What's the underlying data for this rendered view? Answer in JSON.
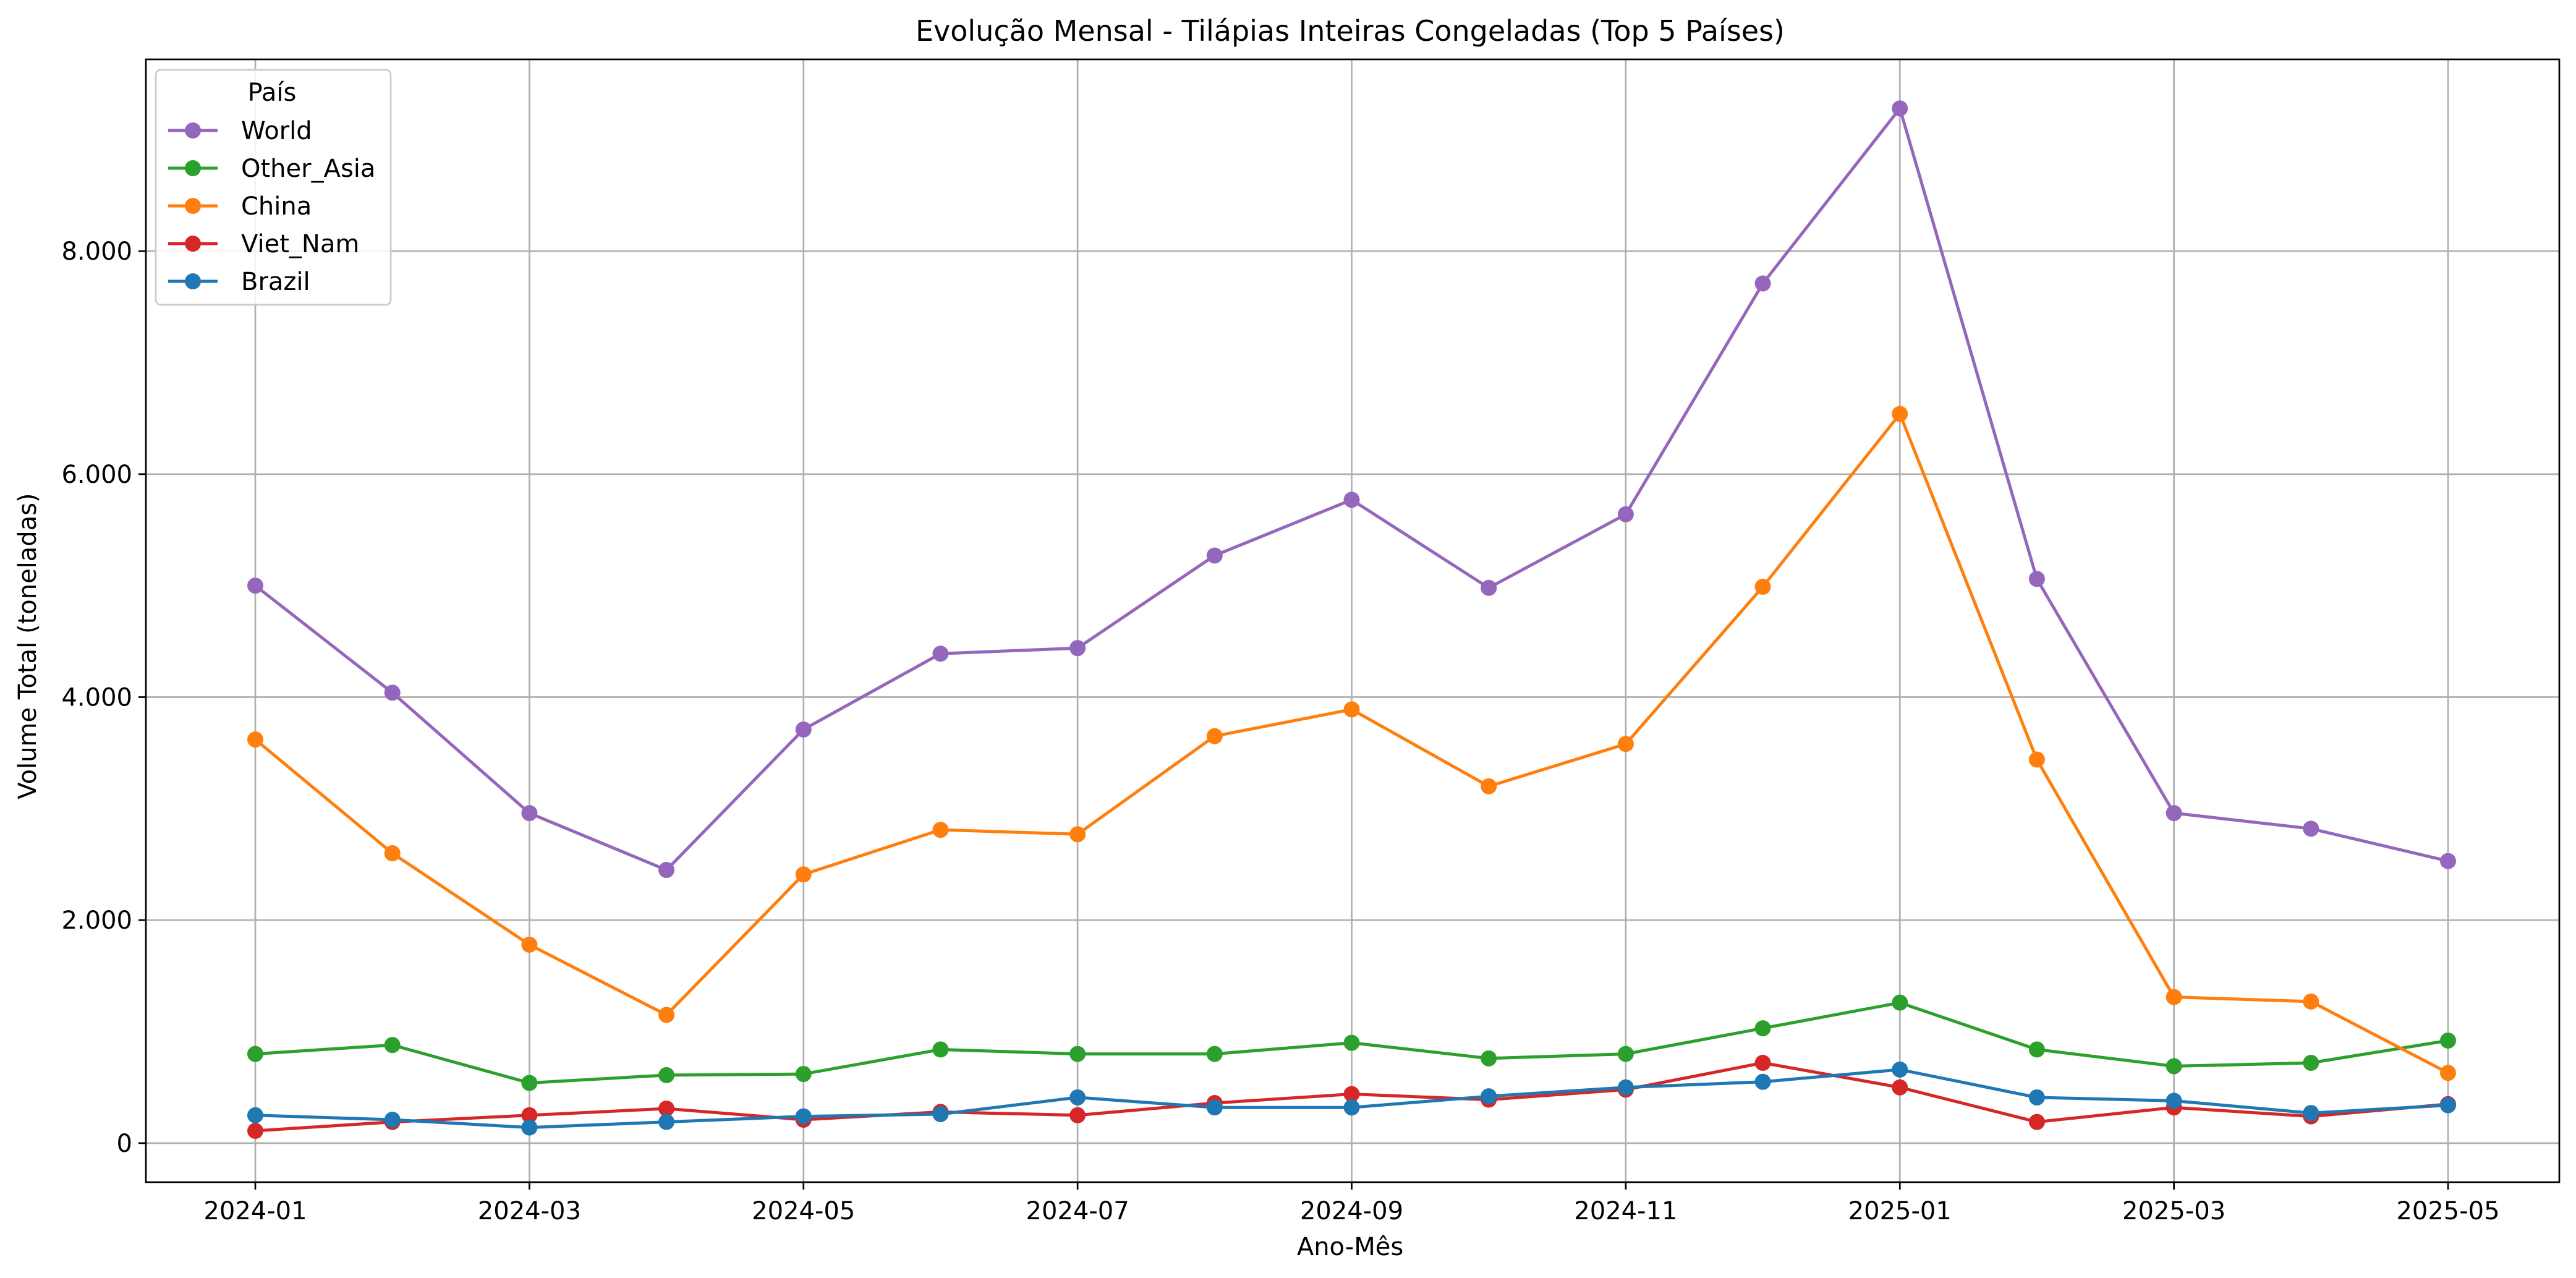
{
  "chart_data": {
    "type": "line",
    "title": "Evolução Mensal - Tilápias Inteiras Congeladas (Top 5 Países)",
    "xlabel": "Ano-Mês",
    "ylabel": "Volume Total (toneladas)",
    "x": [
      "2024-01",
      "2024-02",
      "2024-03",
      "2024-04",
      "2024-05",
      "2024-06",
      "2024-07",
      "2024-08",
      "2024-09",
      "2024-10",
      "2024-11",
      "2024-12",
      "2025-01",
      "2025-02",
      "2025-03",
      "2025-04",
      "2025-05"
    ],
    "x_tick_labels": [
      "2024-01",
      "2024-03",
      "2024-05",
      "2024-07",
      "2024-09",
      "2024-11",
      "2025-01",
      "2025-03",
      "2025-05"
    ],
    "y_ticks": [
      0,
      2000,
      4000,
      6000,
      8000
    ],
    "y_tick_labels": [
      "0",
      "2.000",
      "4.000",
      "6.000",
      "8.000"
    ],
    "ylim": [
      -350,
      9720
    ],
    "grid": true,
    "legend": {
      "title": "País",
      "placement": "top-left"
    },
    "series": [
      {
        "name": "World",
        "color": "#9467bd",
        "values": [
          5000,
          4040,
          2960,
          2450,
          3710,
          4390,
          4440,
          5270,
          5770,
          4980,
          5640,
          7710,
          9280,
          5060,
          2960,
          2820,
          2530
        ]
      },
      {
        "name": "Other_Asia",
        "color": "#2ca02c",
        "values": [
          800,
          880,
          540,
          610,
          620,
          840,
          800,
          800,
          900,
          760,
          800,
          1030,
          1260,
          840,
          690,
          720,
          920
        ]
      },
      {
        "name": "China",
        "color": "#ff7f0e",
        "values": [
          3620,
          2600,
          1780,
          1150,
          2410,
          2810,
          2770,
          3650,
          3890,
          3200,
          3580,
          4990,
          6540,
          3440,
          1310,
          1270,
          630
        ]
      },
      {
        "name": "Viet_Nam",
        "color": "#d62728",
        "values": [
          110,
          190,
          250,
          310,
          210,
          280,
          250,
          360,
          440,
          390,
          480,
          720,
          500,
          190,
          320,
          240,
          350
        ]
      },
      {
        "name": "Brazil",
        "color": "#1f77b4",
        "values": [
          250,
          210,
          140,
          190,
          240,
          260,
          410,
          320,
          320,
          420,
          500,
          550,
          660,
          410,
          380,
          270,
          340
        ]
      }
    ]
  }
}
